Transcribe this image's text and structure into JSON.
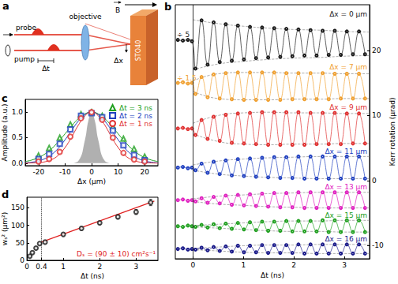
{
  "diagram": {
    "panel": "a",
    "probe": "probe",
    "pump": "pump",
    "objective": "objective",
    "delay": "Δt",
    "offset": "Δx",
    "field": "B",
    "sample": "STO40"
  },
  "chart_data": [
    {
      "panel": "b",
      "type": "line",
      "x_label": "Δt (ns)",
      "y_label": "Kerr rotation (μrad)",
      "xlim": [
        -0.35,
        3.5
      ],
      "xticks": [
        0,
        1,
        2,
        3
      ],
      "ylim": [
        -12,
        27
      ],
      "yticks": [
        -10,
        0,
        10,
        20
      ],
      "vline": 0,
      "marker": "open_circle",
      "line_style": "dashed",
      "x": [
        -0.3,
        -0.2,
        -0.1,
        -0.02,
        0.05,
        0.17,
        0.29,
        0.41,
        0.53,
        0.65,
        0.77,
        0.89,
        1.01,
        1.13,
        1.25,
        1.37,
        1.49,
        1.61,
        1.73,
        1.85,
        1.97,
        2.09,
        2.21,
        2.33,
        2.45,
        2.57,
        2.69,
        2.81,
        2.93,
        3.05,
        3.17,
        3.29,
        3.41
      ],
      "envelope_x": [
        0,
        0.5,
        1,
        1.5,
        2,
        2.5,
        3,
        3.5
      ],
      "series": [
        {
          "name": "Δx = 0 μm",
          "color": "#1a1a1a",
          "scale_note": "÷ 5",
          "values": [
            21.6,
            21.5,
            21.6,
            21.4,
            17.2,
            24.6,
            17.8,
            24.3,
            18.2,
            24.0,
            18.4,
            23.8,
            18.6,
            23.6,
            18.8,
            23.5,
            18.9,
            23.4,
            19.0,
            23.3,
            19.1,
            23.2,
            19.2,
            23.1,
            19.2,
            23.0,
            19.3,
            23.0,
            19.3,
            22.9,
            19.4,
            22.9,
            19.4
          ],
          "envelope_upper": [
            24.7,
            24.1,
            23.7,
            23.4,
            23.2,
            23.1,
            22.9,
            22.8
          ],
          "envelope_lower": [
            17.0,
            17.9,
            18.3,
            18.6,
            18.8,
            18.9,
            19.1,
            19.2
          ]
        },
        {
          "name": "Δx = 7 μm",
          "color": "#f0a030",
          "scale_note": "÷ 1.5",
          "values": [
            15.0,
            15.1,
            14.9,
            15.0,
            13.3,
            15.9,
            12.8,
            16.3,
            12.6,
            16.5,
            12.5,
            16.6,
            12.4,
            16.6,
            12.4,
            16.6,
            12.4,
            16.6,
            12.4,
            16.5,
            12.5,
            16.5,
            12.5,
            16.5,
            12.5,
            16.5,
            12.5,
            16.4,
            12.6,
            16.4,
            12.6,
            16.4,
            12.6
          ],
          "envelope_upper": [
            15.3,
            16.4,
            16.6,
            16.6,
            16.5,
            16.5,
            16.4,
            16.4
          ],
          "envelope_lower": [
            13.7,
            12.6,
            12.4,
            12.4,
            12.5,
            12.5,
            12.6,
            12.6
          ]
        },
        {
          "name": "Δx = 9 μm",
          "color": "#e03030",
          "values": [
            8.0,
            8.1,
            7.9,
            8.0,
            7.0,
            9.3,
            6.4,
            9.8,
            6.1,
            10.1,
            5.8,
            10.3,
            5.7,
            10.4,
            5.6,
            10.5,
            5.5,
            10.5,
            5.5,
            10.5,
            5.5,
            10.5,
            5.5,
            10.4,
            5.6,
            10.4,
            5.6,
            10.4,
            5.6,
            10.3,
            5.7,
            10.3,
            5.7
          ],
          "envelope_upper": [
            8.8,
            10.0,
            10.4,
            10.5,
            10.4,
            10.4,
            10.3,
            10.3
          ],
          "envelope_lower": [
            7.2,
            6.0,
            5.6,
            5.5,
            5.6,
            5.6,
            5.7,
            5.7
          ]
        },
        {
          "name": "Δx = 11 μm",
          "color": "#2040c0",
          "values": [
            2.0,
            2.1,
            1.9,
            2.0,
            1.6,
            2.6,
            1.2,
            2.9,
            1.0,
            3.1,
            0.8,
            3.3,
            0.7,
            3.4,
            0.6,
            3.5,
            0.5,
            3.6,
            0.4,
            3.6,
            0.4,
            3.7,
            0.3,
            3.7,
            0.3,
            3.7,
            0.3,
            3.7,
            0.3,
            3.7,
            0.3,
            3.7,
            0.3
          ],
          "envelope_upper": [
            2.4,
            3.0,
            3.3,
            3.5,
            3.6,
            3.7,
            3.7,
            3.7
          ],
          "envelope_lower": [
            1.6,
            1.0,
            0.7,
            0.5,
            0.4,
            0.3,
            0.3,
            0.3
          ]
        },
        {
          "name": "Δx = 13 μm",
          "color": "#e020c0",
          "values": [
            -3.0,
            -2.9,
            -3.1,
            -3.0,
            -3.2,
            -2.7,
            -3.4,
            -2.5,
            -3.5,
            -2.3,
            -3.7,
            -2.2,
            -3.8,
            -2.1,
            -3.9,
            -2.0,
            -4.0,
            -1.9,
            -4.1,
            -1.9,
            -4.1,
            -1.8,
            -4.2,
            -1.8,
            -4.2,
            -1.8,
            -4.2,
            -1.8,
            -4.2,
            -1.8,
            -4.2,
            -1.8,
            -4.2
          ],
          "envelope_upper": [
            -2.8,
            -2.4,
            -2.2,
            -2.0,
            -1.9,
            -1.8,
            -1.8,
            -1.8
          ],
          "envelope_lower": [
            -3.2,
            -3.6,
            -3.8,
            -4.0,
            -4.1,
            -4.2,
            -4.2,
            -4.2
          ]
        },
        {
          "name": "Δx = 15 μm",
          "color": "#20a020",
          "values": [
            -7.0,
            -7.1,
            -6.9,
            -7.0,
            -7.1,
            -6.8,
            -7.2,
            -6.7,
            -7.3,
            -6.6,
            -7.4,
            -6.5,
            -7.5,
            -6.4,
            -7.6,
            -6.3,
            -7.7,
            -6.3,
            -7.7,
            -6.2,
            -7.8,
            -6.2,
            -7.8,
            -6.2,
            -7.8,
            -6.1,
            -7.9,
            -6.1,
            -7.9,
            -6.1,
            -7.9,
            -6.1,
            -7.9
          ],
          "envelope_upper": [
            -6.9,
            -6.7,
            -6.5,
            -6.3,
            -6.2,
            -6.2,
            -6.1,
            -6.1
          ],
          "envelope_lower": [
            -7.1,
            -7.3,
            -7.5,
            -7.7,
            -7.8,
            -7.8,
            -7.9,
            -7.9
          ]
        },
        {
          "name": "Δx = 16 μm",
          "color": "#1a1a8a",
          "values": [
            -10.5,
            -10.4,
            -10.6,
            -10.5,
            -10.6,
            -10.3,
            -10.7,
            -10.2,
            -10.8,
            -10.1,
            -10.9,
            -10.0,
            -11.0,
            -10.0,
            -11.0,
            -9.9,
            -11.1,
            -9.9,
            -11.1,
            -9.9,
            -11.1,
            -9.8,
            -11.2,
            -9.8,
            -11.2,
            -9.8,
            -11.2,
            -9.8,
            -11.2,
            -9.8,
            -11.2,
            -9.8,
            -11.2
          ],
          "envelope_upper": [
            -10.4,
            -10.2,
            -10.0,
            -9.9,
            -9.9,
            -9.8,
            -9.8,
            -9.8
          ],
          "envelope_lower": [
            -10.6,
            -10.8,
            -11.0,
            -11.1,
            -11.1,
            -11.2,
            -11.2,
            -11.2
          ]
        }
      ]
    },
    {
      "panel": "c",
      "type": "scatter",
      "x_label": "Δx (μm)",
      "y_label": "Amplitude (a.u.)",
      "xlim": [
        -25,
        25
      ],
      "xticks": [
        -20,
        -10,
        0,
        10,
        20
      ],
      "ylim": [
        -0.05,
        1.25
      ],
      "yticks": [
        {
          "value": 0,
          "label": "0.0"
        },
        {
          "value": 0.5,
          "label": "0.5"
        },
        {
          "value": 1,
          "label": "1.0"
        }
      ],
      "legend": "upper right",
      "x": [
        -20,
        -16,
        -12,
        -8,
        -4,
        0,
        4,
        8,
        12,
        16,
        20
      ],
      "fit_x": [
        -25,
        -22.5,
        -20,
        -17.5,
        -15,
        -12.5,
        -10,
        -7.5,
        -5,
        -2.5,
        0,
        2.5,
        5,
        7.5,
        10,
        12.5,
        15,
        17.5,
        20,
        22.5,
        25
      ],
      "pump_x": [
        -7.5,
        -5,
        -2.5,
        -1.25,
        0,
        1.25,
        2.5,
        5,
        7.5
      ],
      "pump_profile": [
        0.001,
        0.044,
        0.458,
        0.823,
        1,
        0.823,
        0.458,
        0.044,
        0.001
      ],
      "pump_color": "#b0b0b0",
      "series": [
        {
          "name": "Δt = 3 ns",
          "color": "#20a020",
          "marker": "open_triangle",
          "values": [
            0.15,
            0.3,
            0.5,
            0.76,
            0.96,
            1.0,
            0.93,
            0.72,
            0.48,
            0.28,
            0.13
          ],
          "fit": [
            0.031,
            0.061,
            0.109,
            0.183,
            0.287,
            0.421,
            0.575,
            0.732,
            0.87,
            0.966,
            1,
            0.966,
            0.87,
            0.732,
            0.575,
            0.421,
            0.287,
            0.183,
            0.109,
            0.061,
            0.031
          ]
        },
        {
          "name": "Δt = 2 ns",
          "color": "#2040c0",
          "marker": "open_square",
          "values": [
            0.08,
            0.18,
            0.38,
            0.66,
            0.93,
            0.98,
            0.9,
            0.64,
            0.35,
            0.16,
            0.06
          ],
          "fit": [
            0.008,
            0.019,
            0.044,
            0.091,
            0.172,
            0.295,
            0.458,
            0.645,
            0.823,
            0.952,
            1,
            0.952,
            0.823,
            0.645,
            0.458,
            0.295,
            0.172,
            0.091,
            0.044,
            0.019,
            0.008
          ]
        },
        {
          "name": "Δt = 1 ns",
          "color": "#e03030",
          "marker": "open_circle",
          "values": [
            0.03,
            0.08,
            0.22,
            0.52,
            0.88,
            1.0,
            0.85,
            0.5,
            0.2,
            0.07,
            0.03
          ],
          "fit": [
            0.001,
            0.003,
            0.009,
            0.027,
            0.07,
            0.157,
            0.306,
            0.514,
            0.744,
            0.929,
            1,
            0.929,
            0.744,
            0.514,
            0.306,
            0.157,
            0.07,
            0.027,
            0.009,
            0.003,
            0.001
          ]
        }
      ]
    },
    {
      "panel": "d",
      "type": "scatter",
      "x_label": "Δt (ns)",
      "y_label": "wₛ² (μm²)",
      "xlim": [
        0,
        3.6
      ],
      "xticks": [
        0,
        0.4,
        1,
        2,
        3
      ],
      "ylim": [
        0,
        180
      ],
      "yticks": [
        0,
        50,
        100,
        150
      ],
      "vline": 0.4,
      "color": "#1a1a1a",
      "marker": "open_circle",
      "x": [
        0.08,
        0.15,
        0.25,
        0.35,
        0.5,
        1.0,
        1.5,
        2.0,
        2.5,
        3.0,
        3.4
      ],
      "values": [
        12,
        22,
        35,
        48,
        52,
        74,
        91,
        107,
        124,
        138,
        165
      ],
      "errors": [
        2,
        3,
        3,
        4,
        4,
        4,
        5,
        5,
        6,
        7,
        9
      ],
      "fit": {
        "x": [
          0.4,
          3.5
        ],
        "values": [
          52,
          169
        ],
        "color": "#e02020",
        "label": "Dₛ = (90 ± 10) cm²s⁻¹"
      }
    }
  ]
}
